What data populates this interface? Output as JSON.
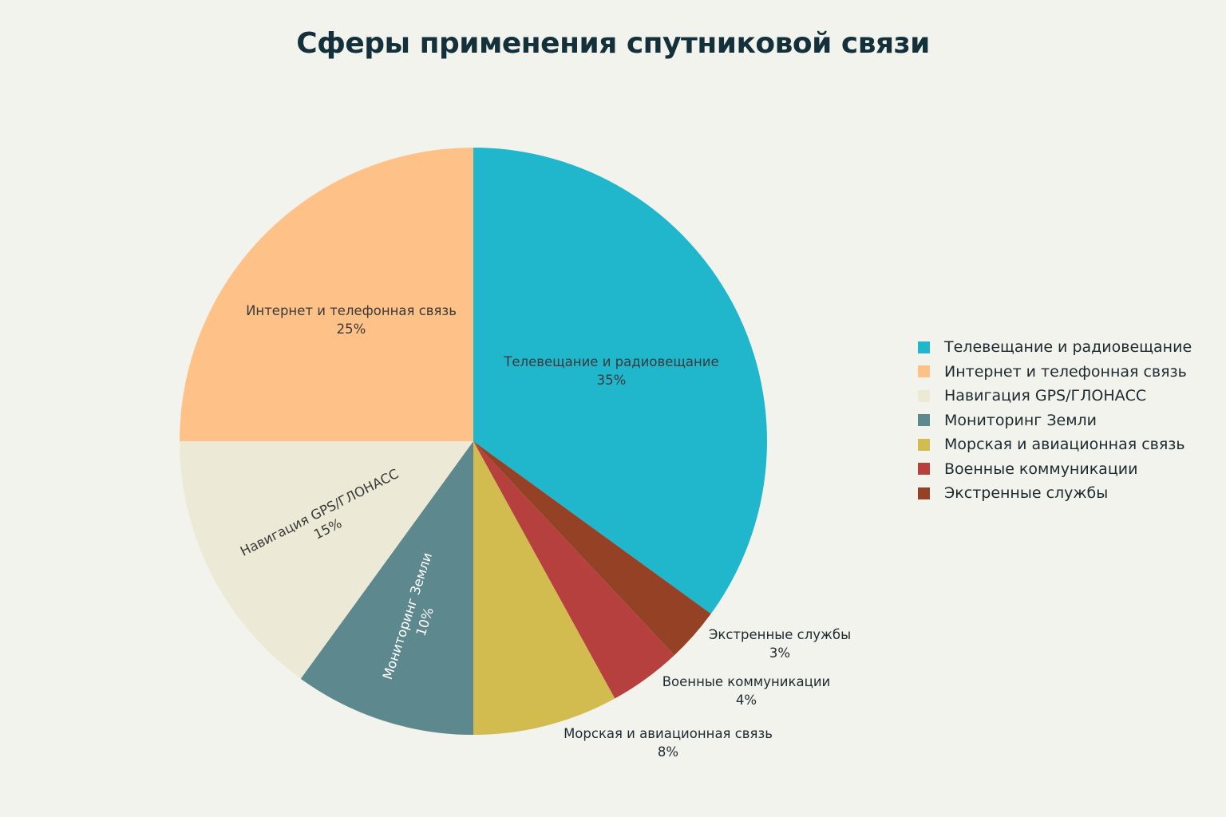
{
  "chart_data": {
    "type": "pie",
    "title": "Сферы применения спутниковой связи",
    "slices": [
      {
        "name": "Телевещание и радиовещание",
        "value": 35,
        "label": "35%",
        "color": "#20b6cc"
      },
      {
        "name": "Экстренные службы",
        "value": 3,
        "label": "3%",
        "color": "#944125"
      },
      {
        "name": "Военные коммуникации",
        "value": 4,
        "label": "4%",
        "color": "#b5403e"
      },
      {
        "name": "Морская и авиационная связь",
        "value": 8,
        "label": "8%",
        "color": "#d2bb4f"
      },
      {
        "name": "Мониторинг Земли",
        "value": 10,
        "label": "10%",
        "color": "#5d888e"
      },
      {
        "name": "Навигация GPS/ГЛОНАСС",
        "value": 15,
        "label": "15%",
        "color": "#ecead6"
      },
      {
        "name": "Интернет и телефонная связь",
        "value": 25,
        "label": "25%",
        "color": "#fec188"
      }
    ],
    "legend": [
      {
        "name": "Телевещание и радиовещание",
        "color": "#20b6cc"
      },
      {
        "name": "Интернет и телефонная связь",
        "color": "#fec188"
      },
      {
        "name": "Навигация GPS/ГЛОНАСС",
        "color": "#ecead6"
      },
      {
        "name": "Мониторинг Земли",
        "color": "#5d888e"
      },
      {
        "name": "Морская и авиационная связь",
        "color": "#d2bb4f"
      },
      {
        "name": "Военные коммуникации",
        "color": "#b5403e"
      },
      {
        "name": "Экстренные службы",
        "color": "#944125"
      }
    ],
    "legend_position": "right"
  }
}
